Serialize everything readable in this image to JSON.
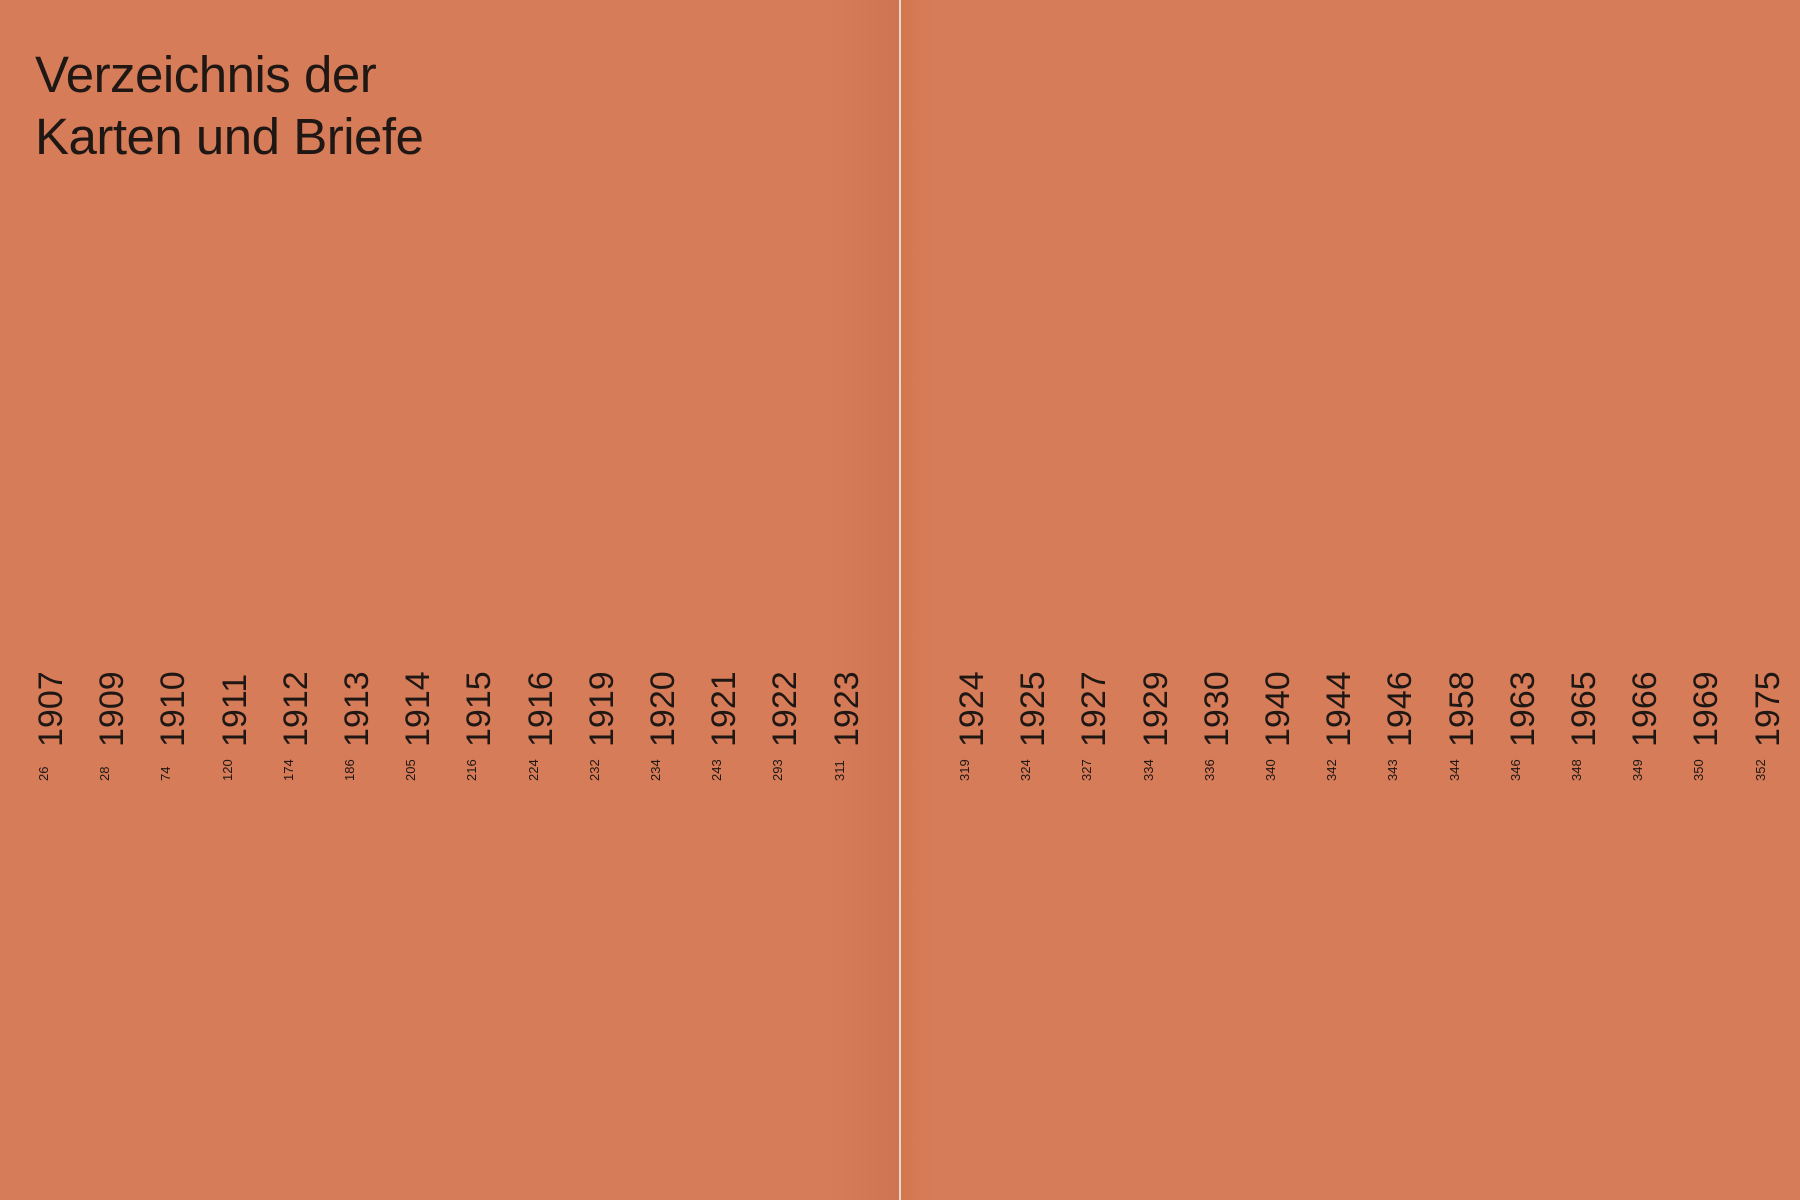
{
  "title": {
    "line1": "Verzeichnis der",
    "line2": "Karten und Briefe"
  },
  "left_page": {
    "entries": [
      {
        "year": "1907",
        "page": "26"
      },
      {
        "year": "1909",
        "page": "28"
      },
      {
        "year": "1910",
        "page": "74"
      },
      {
        "year": "1911",
        "page": "120"
      },
      {
        "year": "1912",
        "page": "174"
      },
      {
        "year": "1913",
        "page": "186"
      },
      {
        "year": "1914",
        "page": "205"
      },
      {
        "year": "1915",
        "page": "216"
      },
      {
        "year": "1916",
        "page": "224"
      },
      {
        "year": "1919",
        "page": "232"
      },
      {
        "year": "1920",
        "page": "234"
      },
      {
        "year": "1921",
        "page": "243"
      },
      {
        "year": "1922",
        "page": "293"
      },
      {
        "year": "1923",
        "page": "311"
      }
    ]
  },
  "right_page": {
    "entries": [
      {
        "year": "1924",
        "page": "319"
      },
      {
        "year": "1925",
        "page": "324"
      },
      {
        "year": "1927",
        "page": "327"
      },
      {
        "year": "1929",
        "page": "334"
      },
      {
        "year": "1930",
        "page": "336"
      },
      {
        "year": "1940",
        "page": "340"
      },
      {
        "year": "1944",
        "page": "342"
      },
      {
        "year": "1946",
        "page": "343"
      },
      {
        "year": "1958",
        "page": "344"
      },
      {
        "year": "1963",
        "page": "346"
      },
      {
        "year": "1965",
        "page": "348"
      },
      {
        "year": "1966",
        "page": "349"
      },
      {
        "year": "1969",
        "page": "350"
      },
      {
        "year": "1975",
        "page": "352"
      }
    ]
  },
  "colors": {
    "background": "#d77c58",
    "text": "#1e1714",
    "gutter": "#ead8cc"
  }
}
